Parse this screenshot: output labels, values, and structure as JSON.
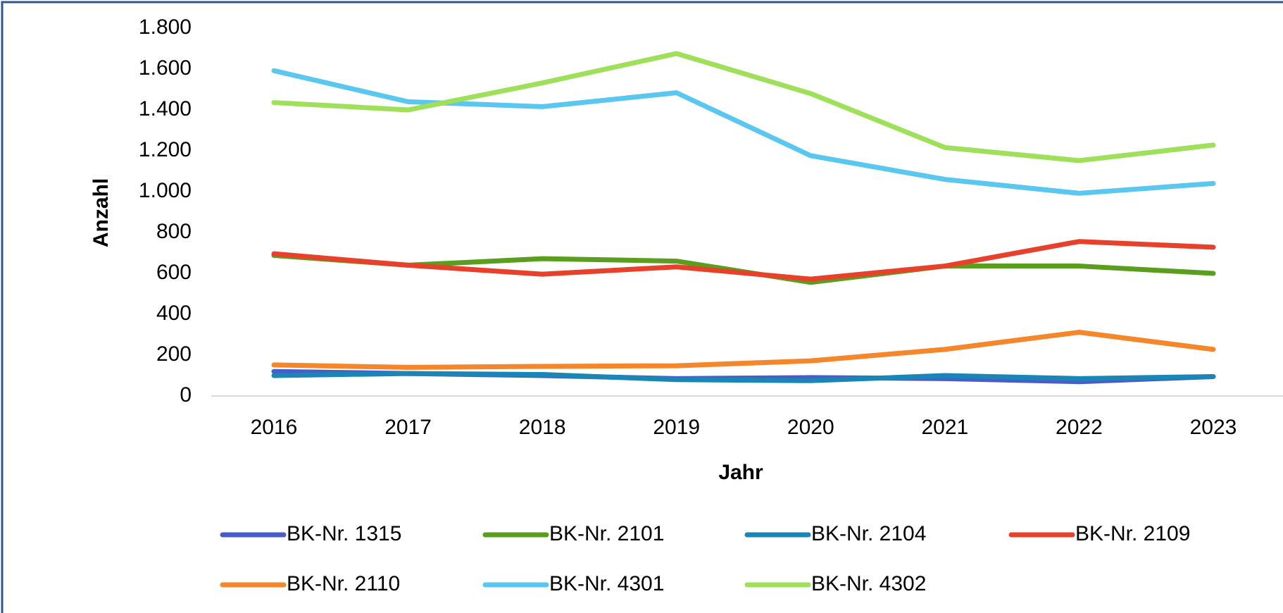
{
  "chart_data": {
    "type": "line",
    "x_label": "Jahr",
    "y_label": "Anzahl",
    "categories": [
      "2016",
      "2017",
      "2018",
      "2019",
      "2020",
      "2021",
      "2022",
      "2023"
    ],
    "series": [
      {
        "name": "BK-Nr. 1315",
        "color": "#4a5cc9",
        "values": [
          120,
          110,
          100,
          85,
          90,
          85,
          70,
          95
        ]
      },
      {
        "name": "BK-Nr. 2101",
        "color": "#5a9e1e",
        "values": [
          688,
          640,
          672,
          660,
          556,
          636,
          636,
          600
        ]
      },
      {
        "name": "BK-Nr. 2104",
        "color": "#1a86b5",
        "values": [
          100,
          110,
          105,
          80,
          75,
          100,
          85,
          95
        ]
      },
      {
        "name": "BK-Nr. 2109",
        "color": "#e8412b",
        "values": [
          696,
          640,
          596,
          632,
          572,
          636,
          756,
          728
        ]
      },
      {
        "name": "BK-Nr. 2110",
        "color": "#f5862a",
        "values": [
          152,
          140,
          145,
          148,
          172,
          228,
          312,
          228
        ]
      },
      {
        "name": "BK-Nr. 4301",
        "color": "#5ac7f0",
        "values": [
          1592,
          1440,
          1416,
          1484,
          1176,
          1060,
          992,
          1040
        ]
      },
      {
        "name": "BK-Nr. 4302",
        "color": "#9fe05a",
        "values": [
          1436,
          1400,
          1532,
          1676,
          1480,
          1216,
          1152,
          1228
        ]
      }
    ],
    "ylim": [
      0,
      1800
    ],
    "yticks": [
      0,
      200,
      400,
      600,
      800,
      {
        "value": 1000,
        "label": "1.000"
      },
      {
        "value": 1200,
        "label": "1.200"
      },
      {
        "value": 1400,
        "label": "1.400"
      },
      {
        "value": 1600,
        "label": "1.600"
      },
      {
        "value": 1800,
        "label": "1.800"
      }
    ],
    "grid": false,
    "legend": "bottom"
  }
}
